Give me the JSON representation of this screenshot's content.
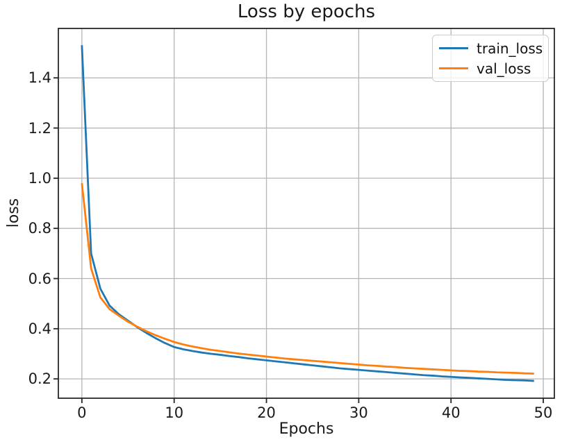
{
  "chart_data": {
    "type": "line",
    "title": "Loss by epochs",
    "xlabel": "Epochs",
    "ylabel": "loss",
    "x": [
      0,
      1,
      2,
      3,
      4,
      5,
      6,
      7,
      8,
      9,
      10,
      11,
      12,
      13,
      14,
      15,
      16,
      17,
      18,
      19,
      20,
      21,
      22,
      23,
      24,
      25,
      26,
      27,
      28,
      29,
      30,
      31,
      32,
      33,
      34,
      35,
      36,
      37,
      38,
      39,
      40,
      41,
      42,
      43,
      44,
      45,
      46,
      47,
      48,
      49
    ],
    "series": [
      {
        "name": "train_loss",
        "color": "#1f77b4",
        "values": [
          1.53,
          0.7,
          0.56,
          0.492,
          0.458,
          0.432,
          0.406,
          0.383,
          0.362,
          0.343,
          0.327,
          0.318,
          0.311,
          0.305,
          0.3,
          0.296,
          0.291,
          0.287,
          0.282,
          0.278,
          0.274,
          0.27,
          0.266,
          0.262,
          0.258,
          0.254,
          0.25,
          0.246,
          0.242,
          0.239,
          0.236,
          0.233,
          0.23,
          0.227,
          0.224,
          0.221,
          0.218,
          0.215,
          0.213,
          0.21,
          0.208,
          0.206,
          0.204,
          0.202,
          0.2,
          0.198,
          0.196,
          0.195,
          0.194,
          0.192
        ]
      },
      {
        "name": "val_loss",
        "color": "#ff7f0e",
        "values": [
          0.98,
          0.64,
          0.525,
          0.478,
          0.452,
          0.428,
          0.408,
          0.39,
          0.374,
          0.36,
          0.347,
          0.337,
          0.329,
          0.322,
          0.316,
          0.311,
          0.306,
          0.301,
          0.297,
          0.293,
          0.289,
          0.285,
          0.281,
          0.278,
          0.275,
          0.272,
          0.269,
          0.266,
          0.263,
          0.26,
          0.257,
          0.254,
          0.252,
          0.249,
          0.247,
          0.244,
          0.242,
          0.24,
          0.238,
          0.236,
          0.234,
          0.232,
          0.231,
          0.229,
          0.228,
          0.226,
          0.225,
          0.224,
          0.222,
          0.221
        ]
      }
    ],
    "xlim": [
      -2.55,
      51.2
    ],
    "ylim": [
      0.123,
      1.597
    ],
    "x_ticks": [
      0,
      10,
      20,
      30,
      40,
      50
    ],
    "x_tick_labels": [
      "0",
      "10",
      "20",
      "30",
      "40",
      "50"
    ],
    "y_ticks": [
      0.2,
      0.4,
      0.6,
      0.8,
      1.0,
      1.2,
      1.4
    ],
    "y_tick_labels": [
      "0.2",
      "0.4",
      "0.6",
      "0.8",
      "1.0",
      "1.2",
      "1.4"
    ],
    "grid": true,
    "legend_position": "upper right",
    "colors": {
      "grid": "#b5b5b5",
      "spine": "#262626",
      "text": "#1a1a1a"
    }
  }
}
